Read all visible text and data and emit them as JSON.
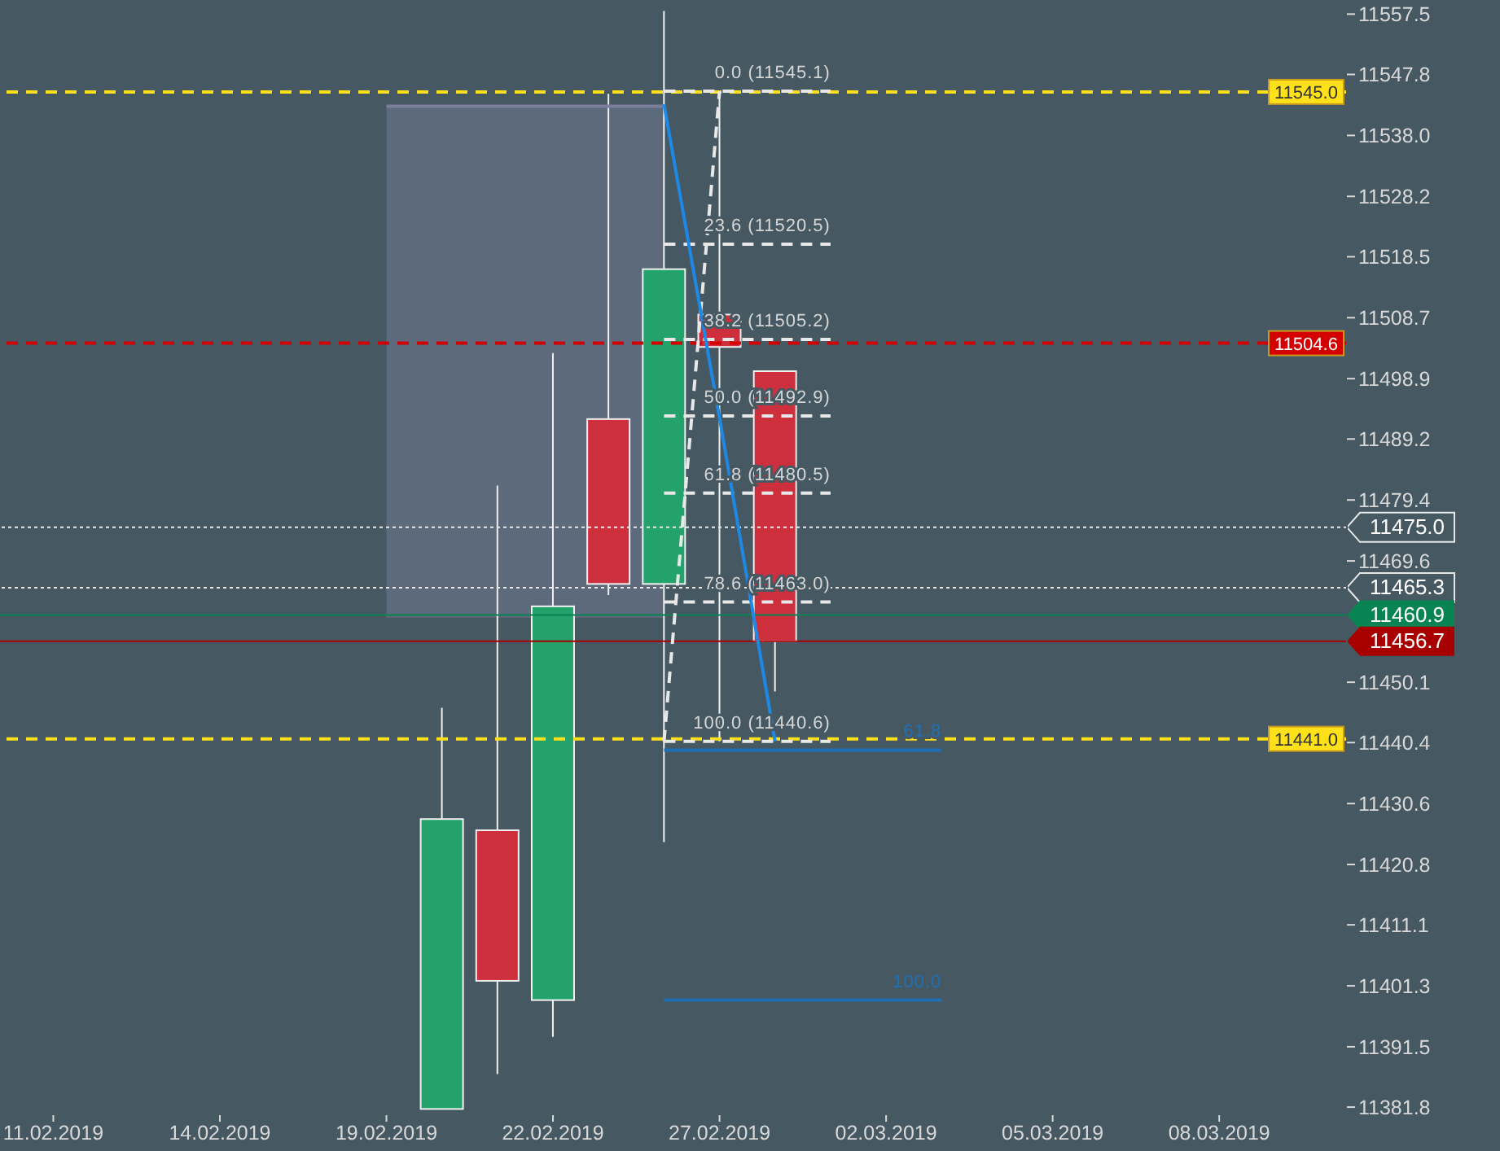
{
  "chart_data": {
    "type": "candlestick",
    "categories": [
      "11.02.2019",
      null,
      null,
      "14.02.2019",
      null,
      null,
      "19.02.2019",
      null,
      null,
      "22.02.2019",
      null,
      null,
      "27.02.2019",
      null,
      null,
      "02.03.2019",
      null,
      null,
      "05.03.2019",
      null,
      null,
      "08.03.2019",
      null,
      null
    ],
    "ohlc": [
      null,
      null,
      null,
      null,
      null,
      null,
      null,
      [
        11381.5,
        11446.0,
        11381.5,
        11428.1
      ],
      [
        11426.3,
        11481.7,
        11387.1,
        11402.1
      ],
      [
        11399.0,
        11503.0,
        11393.1,
        11462.3
      ],
      [
        11492.4,
        11544.7,
        11464.1,
        11465.9
      ],
      [
        11465.9,
        11558.0,
        11424.4,
        11516.5
      ],
      [
        11509.2,
        11545.1,
        11440.6,
        11504.0
      ],
      [
        11500.1,
        11500.1,
        11448.6,
        11456.7
      ],
      null,
      null,
      null,
      null,
      null,
      null,
      null,
      null,
      null,
      null
    ],
    "colors": [
      null,
      null,
      null,
      null,
      null,
      null,
      null,
      "#23a26b",
      "#cd2f3c",
      "#23a26b",
      "#cd2f3c",
      "#23a26b",
      "#cd2f3c",
      "#cd2f3c",
      null,
      null,
      null,
      null,
      null,
      null,
      null,
      null,
      null,
      null
    ],
    "series": [
      {
        "type": "line",
        "color": "#7b7f9b",
        "line_style": "solid",
        "values": [
          null,
          null,
          null,
          null,
          null,
          null,
          11542.7,
          11542.7,
          11542.7,
          11542.7,
          11542.7,
          11542.7,
          null,
          null,
          null,
          null,
          null,
          null,
          null,
          null,
          null,
          null,
          null,
          null
        ],
        "lower": [
          null,
          null,
          null,
          null,
          null,
          null,
          11460.5,
          11460.5,
          11460.5,
          11460.5,
          11460.5,
          11460.5,
          null,
          null,
          null,
          null,
          null,
          null,
          null,
          null,
          null,
          null,
          null,
          null
        ],
        "upper": [
          null,
          null,
          null,
          null,
          null,
          null,
          11542.7,
          11542.7,
          11542.7,
          11542.7,
          11542.7,
          11542.7,
          null,
          null,
          null,
          null,
          null,
          null,
          null,
          null,
          null,
          null,
          null,
          null
        ]
      },
      {
        "type": "line",
        "name": "0.0 (11545.1)",
        "color": "#e8e8e8",
        "line_style": "dashed",
        "values": [
          null,
          null,
          null,
          null,
          null,
          null,
          null,
          null,
          null,
          null,
          null,
          11545.1,
          11545.1,
          11545.1,
          11545.1,
          null,
          null,
          null,
          null,
          null,
          null,
          null,
          null,
          null
        ]
      },
      {
        "type": "line",
        "name": "23.6 (11520.5)",
        "color": "#e8e8e8",
        "line_style": "dashed",
        "values": [
          null,
          null,
          null,
          null,
          null,
          null,
          null,
          null,
          null,
          null,
          null,
          11520.5,
          11520.5,
          11520.5,
          11520.5,
          null,
          null,
          null,
          null,
          null,
          null,
          null,
          null,
          null
        ]
      },
      {
        "type": "line",
        "name": "38.2 (11505.2)",
        "color": "#e8e8e8",
        "line_style": "dashed",
        "values": [
          null,
          null,
          null,
          null,
          null,
          null,
          null,
          null,
          null,
          null,
          null,
          11505.2,
          11505.2,
          11505.2,
          11505.2,
          null,
          null,
          null,
          null,
          null,
          null,
          null,
          null,
          null
        ]
      },
      {
        "type": "line",
        "name": "50.0 (11492.9)",
        "color": "#e8e8e8",
        "line_style": "dashed",
        "values": [
          null,
          null,
          null,
          null,
          null,
          null,
          null,
          null,
          null,
          null,
          null,
          11492.9,
          11492.9,
          11492.9,
          11492.9,
          null,
          null,
          null,
          null,
          null,
          null,
          null,
          null,
          null
        ]
      },
      {
        "type": "line",
        "name": "61.8 (11480.5)",
        "color": "#e8e8e8",
        "line_style": "dashed",
        "values": [
          null,
          null,
          null,
          null,
          null,
          null,
          null,
          null,
          null,
          null,
          null,
          11480.5,
          11480.5,
          11480.5,
          11480.5,
          null,
          null,
          null,
          null,
          null,
          null,
          null,
          null,
          null
        ]
      },
      {
        "type": "line",
        "name": "78.6 (11463.0)",
        "color": "#e8e8e8",
        "line_style": "dashed",
        "values": [
          null,
          null,
          null,
          null,
          null,
          null,
          null,
          null,
          null,
          null,
          null,
          11463.0,
          11463.0,
          11463.0,
          11463.0,
          null,
          null,
          null,
          null,
          null,
          null,
          null,
          null,
          null
        ]
      },
      {
        "type": "line",
        "name": "100.0 (11440.6)",
        "color": "#e8e8e8",
        "line_style": "dashed",
        "values": [
          null,
          null,
          null,
          null,
          null,
          null,
          null,
          null,
          null,
          null,
          null,
          11440.6,
          11440.6,
          11440.6,
          11440.6,
          null,
          null,
          null,
          null,
          null,
          null,
          null,
          null,
          null
        ]
      },
      {
        "type": "line",
        "color": "#e8e8e8",
        "line_style": "dashed",
        "values": [
          null,
          null,
          null,
          null,
          null,
          null,
          null,
          null,
          null,
          null,
          null,
          11440.6,
          11545.1,
          null,
          null,
          null,
          null,
          null,
          null,
          null,
          null,
          null,
          null,
          null
        ]
      },
      {
        "type": "line",
        "color": "#1e88e5",
        "line_style": "solid",
        "values": [
          null,
          null,
          null,
          null,
          null,
          null,
          null,
          null,
          null,
          null,
          null,
          11543.0,
          11492.6,
          11440.6,
          null,
          null,
          null,
          null,
          null,
          null,
          null,
          null,
          null,
          null
        ]
      },
      {
        "type": "line",
        "name": "61.8",
        "color": "#1f6fb5",
        "line_style": "solid",
        "values": [
          null,
          null,
          null,
          null,
          null,
          null,
          null,
          null,
          null,
          null,
          null,
          11439.2,
          11439.2,
          11439.2,
          11439.2,
          11439.2,
          11439.2,
          null,
          null,
          null,
          null,
          null,
          null,
          null
        ]
      },
      {
        "type": "line",
        "name": "100.0",
        "color": "#1f6fb5",
        "line_style": "solid",
        "values": [
          null,
          null,
          null,
          null,
          null,
          null,
          null,
          null,
          null,
          null,
          null,
          11399.0,
          11399.0,
          11399.0,
          11399.0,
          11399.0,
          11399.0,
          null,
          null,
          null,
          null,
          null,
          null,
          null
        ]
      }
    ],
    "ylim": [
      11380.5,
      11558.2
    ],
    "yticks": [
      11557.5,
      11547.8,
      {
        "value": 11538.0,
        "label": "11538.0"
      },
      11528.2,
      11518.5,
      11508.7,
      11498.9,
      11489.2,
      11479.4,
      11469.6,
      11450.1,
      11440.4,
      11430.6,
      11420.8,
      11411.1,
      11401.3,
      11391.5,
      11381.8
    ],
    "ref_lines": [
      {
        "axis": "y",
        "value": 11545.0,
        "label": "11545.0",
        "color": "#ffe11a",
        "line_style": "dashed"
      },
      {
        "axis": "y",
        "value": 11441.0,
        "label": "11441.0",
        "color": "#ffe11a",
        "line_style": "dashed"
      },
      {
        "axis": "y",
        "value": 11504.6,
        "label": "11504.6",
        "color": "#d40000",
        "line_style": "dashed"
      },
      {
        "axis": "y",
        "value": 11475.0,
        "label": "11475.0",
        "color": "#e8e8e8",
        "line_style": "dotted"
      },
      {
        "axis": "y",
        "value": 11465.3,
        "label": "11465.3",
        "color": "#e8e8e8",
        "line_style": "dotted"
      },
      {
        "axis": "y",
        "value": 11460.9,
        "label": "11460.9",
        "color": "#078452",
        "line_style": "solid"
      },
      {
        "axis": "y",
        "value": 11456.7,
        "label": "11456.7",
        "color": "#a80000",
        "line_style": "solid"
      }
    ]
  }
}
